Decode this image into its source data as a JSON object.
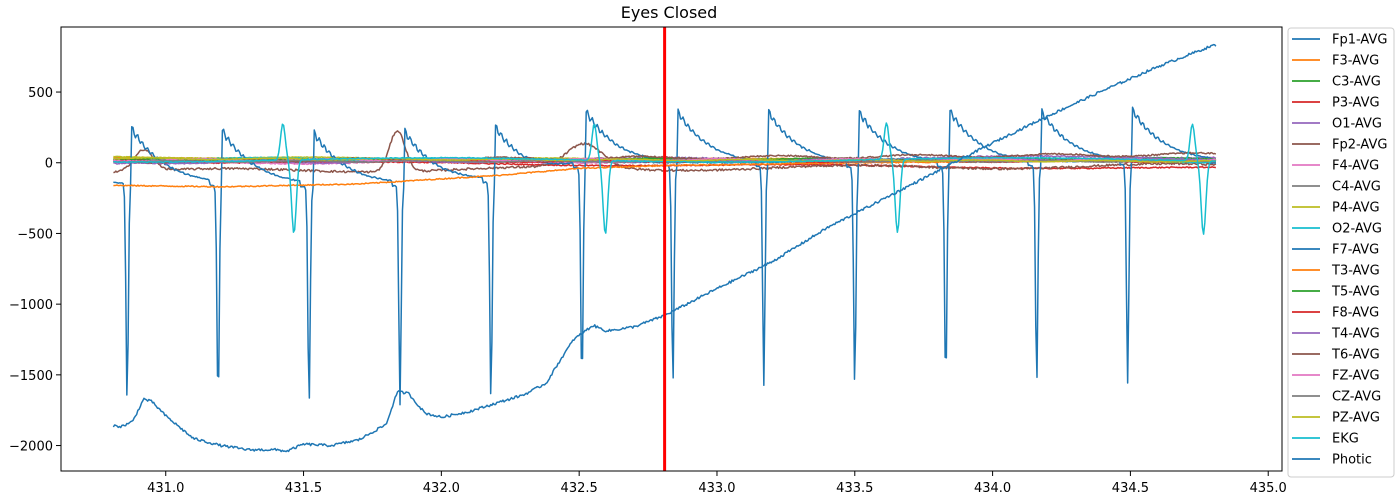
{
  "chart_data": {
    "type": "line",
    "title": "Eyes Closed",
    "xlabel": "",
    "ylabel": "",
    "xlim": [
      430.62,
      435.05
    ],
    "ylim": [
      -2180,
      960
    ],
    "xticks": [
      431.0,
      431.5,
      432.0,
      432.5,
      433.0,
      433.5,
      434.0,
      434.5,
      435.0
    ],
    "xtick_labels": [
      "431.0",
      "431.5",
      "432.0",
      "432.5",
      "433.0",
      "433.5",
      "434.0",
      "434.5",
      "435.0"
    ],
    "yticks": [
      500,
      0,
      -500,
      -1000,
      -1500,
      -2000
    ],
    "ytick_labels": [
      "500",
      "0",
      "−500",
      "−1000",
      "−1500",
      "−2000"
    ],
    "grid": false,
    "legend_location": "outside right",
    "marker_line": {
      "x": 432.81,
      "color": "#ff0000"
    },
    "x_start": 430.81,
    "x_end": 434.81,
    "ekg_spike_times": [
      430.86,
      431.19,
      431.52,
      431.85,
      432.18,
      432.51,
      432.84,
      433.17,
      433.5,
      433.83,
      434.16,
      434.49
    ],
    "o2_artifact_times": [
      431.45,
      432.58,
      433.64,
      434.75
    ],
    "series": [
      {
        "name": "Fp1-AVG",
        "color": "#1f77b4",
        "offset": 20,
        "drift": -20,
        "amp": 8
      },
      {
        "name": "F3-AVG",
        "color": "#ff7f0e",
        "offset": 30,
        "drift": -10,
        "amp": 6
      },
      {
        "name": "C3-AVG",
        "color": "#2ca02c",
        "offset": 15,
        "drift": 0,
        "amp": 6
      },
      {
        "name": "P3-AVG",
        "color": "#d62728",
        "offset": 10,
        "drift": -50,
        "amp": 8
      },
      {
        "name": "O1-AVG",
        "color": "#9467bd",
        "offset": 5,
        "drift": 40,
        "amp": 10
      },
      {
        "name": "Fp2-AVG",
        "color": "#8c564b",
        "offset": -60,
        "drift": 40,
        "amp": 15
      },
      {
        "name": "F4-AVG",
        "color": "#e377c2",
        "offset": 0,
        "drift": 20,
        "amp": 10
      },
      {
        "name": "C4-AVG",
        "color": "#7f7f7f",
        "offset": 10,
        "drift": 10,
        "amp": 6
      },
      {
        "name": "P4-AVG",
        "color": "#bcbd22",
        "offset": 40,
        "drift": -30,
        "amp": 5
      },
      {
        "name": "O2-AVG",
        "color": "#17becf",
        "offset": 30,
        "drift": -20,
        "amp": 8
      },
      {
        "name": "F7-AVG",
        "color": "#1f77b4",
        "offset": -140,
        "drift": 140,
        "amp": 12
      },
      {
        "name": "T3-AVG",
        "color": "#ff7f0e",
        "offset": -160,
        "drift": 150,
        "amp": 8
      },
      {
        "name": "T5-AVG",
        "color": "#2ca02c",
        "offset": 20,
        "drift": 10,
        "amp": 6
      },
      {
        "name": "F8-AVG",
        "color": "#d62728",
        "offset": 10,
        "drift": 0,
        "amp": 6
      },
      {
        "name": "T4-AVG",
        "color": "#9467bd",
        "offset": 0,
        "drift": 30,
        "amp": 8
      },
      {
        "name": "T6-AVG",
        "color": "#8c564b",
        "offset": 10,
        "drift": 50,
        "amp": 10
      },
      {
        "name": "FZ-AVG",
        "color": "#e377c2",
        "offset": 20,
        "drift": 0,
        "amp": 8
      },
      {
        "name": "CZ-AVG",
        "color": "#7f7f7f",
        "offset": 10,
        "drift": 0,
        "amp": 5
      },
      {
        "name": "PZ-AVG",
        "color": "#bcbd22",
        "offset": 30,
        "drift": -20,
        "amp": 5
      },
      {
        "name": "EKG",
        "color": "#17becf",
        "offset": 0,
        "drift": 0,
        "amp": 0
      },
      {
        "name": "Photic",
        "color": "#1f77b4",
        "offset": 0,
        "drift": 0,
        "amp": 0
      }
    ],
    "photic_keypoints": [
      [
        430.81,
        -1860
      ],
      [
        430.84,
        -1865
      ],
      [
        430.88,
        -1830
      ],
      [
        430.92,
        -1670
      ],
      [
        430.95,
        -1690
      ],
      [
        431.0,
        -1790
      ],
      [
        431.1,
        -1950
      ],
      [
        431.2,
        -2000
      ],
      [
        431.3,
        -2030
      ],
      [
        431.4,
        -2030
      ],
      [
        431.44,
        -2040
      ],
      [
        431.5,
        -1990
      ],
      [
        431.6,
        -2000
      ],
      [
        431.7,
        -1960
      ],
      [
        431.8,
        -1850
      ],
      [
        431.84,
        -1620
      ],
      [
        431.88,
        -1630
      ],
      [
        431.94,
        -1770
      ],
      [
        432.0,
        -1800
      ],
      [
        432.1,
        -1760
      ],
      [
        432.2,
        -1700
      ],
      [
        432.3,
        -1640
      ],
      [
        432.38,
        -1560
      ],
      [
        432.43,
        -1400
      ],
      [
        432.48,
        -1250
      ],
      [
        432.55,
        -1150
      ],
      [
        432.6,
        -1190
      ],
      [
        432.7,
        -1160
      ],
      [
        432.81,
        -1080
      ],
      [
        433.0,
        -890
      ],
      [
        433.2,
        -700
      ],
      [
        433.4,
        -460
      ],
      [
        433.6,
        -260
      ],
      [
        433.8,
        -60
      ],
      [
        434.0,
        140
      ],
      [
        434.2,
        330
      ],
      [
        434.4,
        510
      ],
      [
        434.6,
        680
      ],
      [
        434.8,
        830
      ]
    ],
    "f7_baseline_keypoints": [
      [
        430.81,
        -140
      ],
      [
        431.2,
        -160
      ],
      [
        431.6,
        -170
      ],
      [
        432.0,
        -160
      ],
      [
        432.3,
        -120
      ],
      [
        432.5,
        -30
      ],
      [
        432.81,
        -20
      ],
      [
        433.5,
        -30
      ],
      [
        434.2,
        -20
      ],
      [
        434.81,
        0
      ]
    ],
    "t3_baseline_keypoints": [
      [
        430.81,
        -160
      ],
      [
        431.2,
        -170
      ],
      [
        431.7,
        -150
      ],
      [
        432.2,
        -90
      ],
      [
        432.5,
        -40
      ],
      [
        432.8,
        -20
      ],
      [
        433.5,
        0
      ],
      [
        434.81,
        20
      ]
    ]
  }
}
